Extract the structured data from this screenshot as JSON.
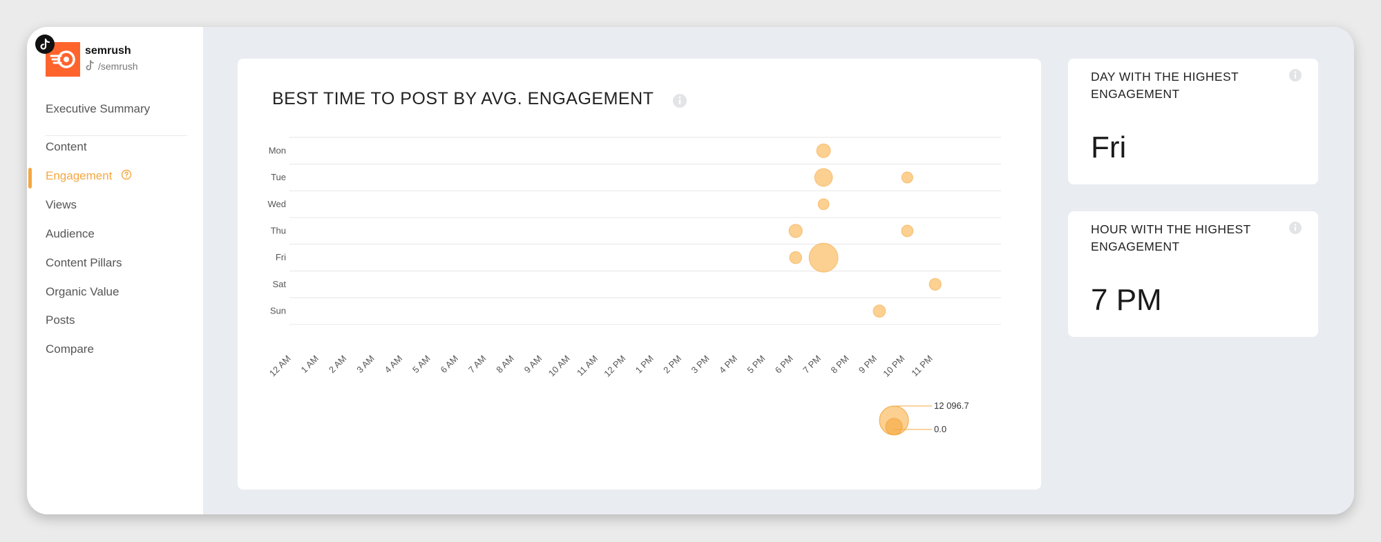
{
  "brand": {
    "name": "semrush",
    "handle": "/semrush",
    "logo_icon": "semrush-logo",
    "network_icon": "tiktok-icon",
    "logo_color": "#ff642d"
  },
  "nav": {
    "items": [
      {
        "label": "Executive Summary",
        "active": false
      },
      {
        "label": "Content",
        "active": false
      },
      {
        "label": "Engagement",
        "active": true,
        "icon": "help-circle-icon"
      },
      {
        "label": "Views",
        "active": false
      },
      {
        "label": "Audience",
        "active": false
      },
      {
        "label": "Content Pillars",
        "active": false
      },
      {
        "label": "Organic Value",
        "active": false
      },
      {
        "label": "Posts",
        "active": false
      },
      {
        "label": "Compare",
        "active": false
      }
    ],
    "accent_color": "#f5a742"
  },
  "chart": {
    "title": "BEST TIME TO POST BY AVG. ENGAGEMENT",
    "info_icon": "info-icon"
  },
  "chart_data": {
    "type": "scatter",
    "title": "BEST TIME TO POST BY AVG. ENGAGEMENT",
    "x_categories": [
      "12 AM",
      "1 AM",
      "2 AM",
      "3 AM",
      "4 AM",
      "5 AM",
      "6 AM",
      "7 AM",
      "8 AM",
      "9 AM",
      "10 AM",
      "11 AM",
      "12 PM",
      "1 PM",
      "2 PM",
      "3 PM",
      "4 PM",
      "5 PM",
      "6 PM",
      "7 PM",
      "8 PM",
      "9 PM",
      "10 PM",
      "11 PM"
    ],
    "y_categories": [
      "Mon",
      "Tue",
      "Wed",
      "Thu",
      "Fri",
      "Sat",
      "Sun"
    ],
    "points": [
      {
        "day": "Mon",
        "hour": "7 PM",
        "value": 1500
      },
      {
        "day": "Tue",
        "hour": "7 PM",
        "value": 3300
      },
      {
        "day": "Tue",
        "hour": "10 PM",
        "value": 700
      },
      {
        "day": "Wed",
        "hour": "7 PM",
        "value": 650
      },
      {
        "day": "Thu",
        "hour": "6 PM",
        "value": 1300
      },
      {
        "day": "Thu",
        "hour": "10 PM",
        "value": 800
      },
      {
        "day": "Fri",
        "hour": "6 PM",
        "value": 950
      },
      {
        "day": "Fri",
        "hour": "7 PM",
        "value": 12096.7
      },
      {
        "day": "Sat",
        "hour": "11 PM",
        "value": 900
      },
      {
        "day": "Sun",
        "hour": "9 PM",
        "value": 1000
      }
    ],
    "size_legend": {
      "max_label": "12 096.7",
      "min_label": "0.0",
      "max": 12096.7,
      "min": 0.0
    },
    "bubble_color": "#f9c06b",
    "grid": true
  },
  "cards": [
    {
      "title": "DAY WITH THE HIGHEST ENGAGEMENT",
      "value": "Fri",
      "info_icon": "info-icon"
    },
    {
      "title": "HOUR WITH THE HIGHEST ENGAGEMENT",
      "value": "7 PM",
      "info_icon": "info-icon"
    }
  ]
}
